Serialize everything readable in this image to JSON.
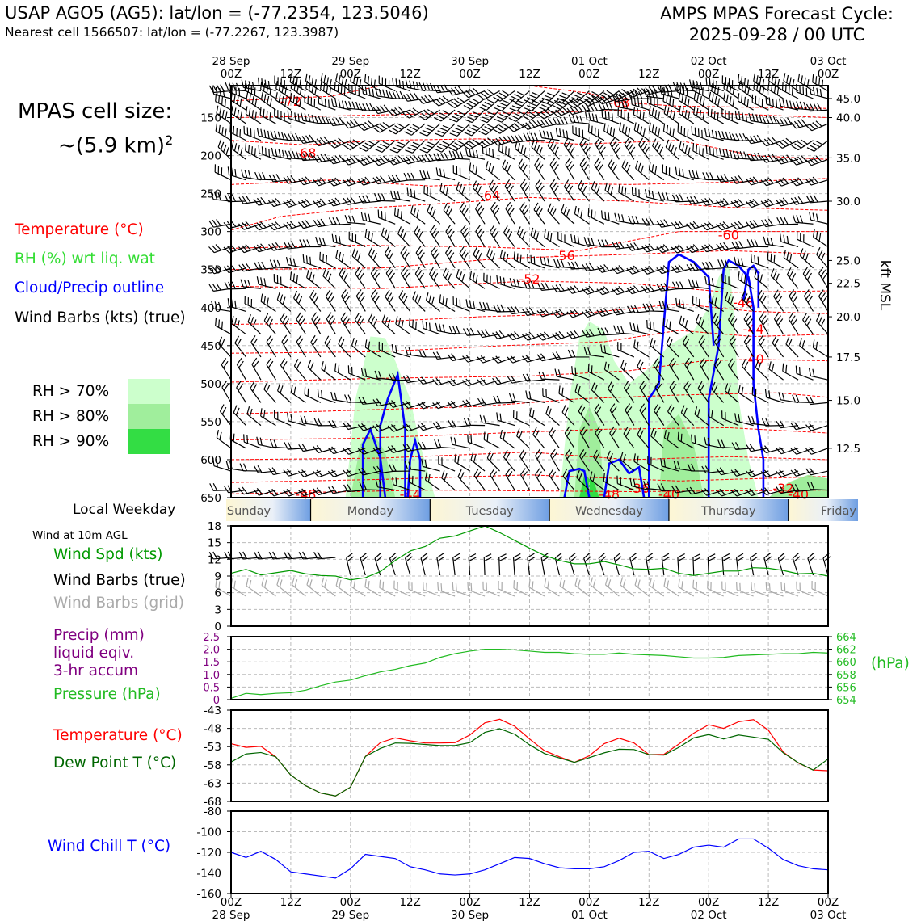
{
  "header": {
    "title_left": "USAP AGO5 (AG5): lat/lon = (-77.2354, 123.5046)",
    "subtitle_left": "Nearest cell 1566507: lat/lon = (-77.2267, 123.3987)",
    "title_right_line1": "AMPS MPAS Forecast Cycle:",
    "title_right_line2": "2025-09-28 / 00 UTC",
    "cell_size_line1": "MPAS cell size:",
    "cell_size_line2": "~(5.9 km)",
    "cell_size_exp": "2"
  },
  "legend": {
    "temperature": "Temperature (°C)",
    "rh": "RH (%) wrt liq. wat",
    "cloud": "Cloud/Precip outline",
    "barbs": "Wind Barbs (kts) (true)",
    "rh70": "RH > 70%",
    "rh80": "RH > 80%",
    "rh90": "RH > 90%",
    "local_weekday": "Local Weekday",
    "wind10m": "Wind at 10m AGL",
    "wind_spd": "Wind Spd (kts)",
    "barbs_true": "Wind Barbs (true)",
    "barbs_grid": "Wind Barbs (grid)",
    "precip1": "Precip (mm)",
    "precip2": "liquid eqiv.",
    "precip3": "3-hr accum",
    "pressure": "Pressure (hPa)",
    "temp2": "Temperature (°C)",
    "dewpoint": "Dew Point T (°C)",
    "windchill": "Wind Chill T (°C)"
  },
  "colors": {
    "temperature": "#ff0000",
    "rh_label": "#33dd33",
    "cloud": "#0000ff",
    "rh70": "#ccffcc",
    "rh80": "#a0ee9c",
    "rh90": "#33dd44",
    "wind_spd": "#009900",
    "barbs_grid": "#aaaaaa",
    "precip": "#800080",
    "pressure": "#22bb22",
    "dewpoint": "#006600",
    "windchill": "#0000ff"
  },
  "chart_data": [
    {
      "type": "line",
      "panel": "cross-section",
      "x_hours": [
        0,
        120
      ],
      "x_ticks": [
        {
          "hour": 0,
          "top": "28 Sep",
          "bot": "00Z"
        },
        {
          "hour": 12,
          "top": "",
          "bot": "12Z"
        },
        {
          "hour": 24,
          "top": "29 Sep",
          "bot": "00Z"
        },
        {
          "hour": 36,
          "top": "",
          "bot": "12Z"
        },
        {
          "hour": 48,
          "top": "30 Sep",
          "bot": "00Z"
        },
        {
          "hour": 60,
          "top": "",
          "bot": "12Z"
        },
        {
          "hour": 72,
          "top": "01 Oct",
          "bot": "00Z"
        },
        {
          "hour": 84,
          "top": "",
          "bot": "12Z"
        },
        {
          "hour": 96,
          "top": "02 Oct",
          "bot": "00Z"
        },
        {
          "hour": 108,
          "top": "",
          "bot": "12Z"
        },
        {
          "hour": 120,
          "top": "03 Oct",
          "bot": "00Z"
        }
      ],
      "pressure_ticks": [
        150,
        200,
        250,
        300,
        350,
        400,
        450,
        500,
        550,
        600,
        650
      ],
      "ylim_hpa": [
        650,
        108
      ],
      "height_ticks": [
        {
          "label": "45.0",
          "p": 125
        },
        {
          "label": "40.0",
          "p": 150
        },
        {
          "label": "35.0",
          "p": 203
        },
        {
          "label": "30.0",
          "p": 260
        },
        {
          "label": "25.0",
          "p": 338
        },
        {
          "label": "22.5",
          "p": 368
        },
        {
          "label": "20.0",
          "p": 412
        },
        {
          "label": "17.5",
          "p": 465
        },
        {
          "label": "15.0",
          "p": 522
        },
        {
          "label": "12.5",
          "p": 585
        }
      ],
      "right_axis_label": "kft MSL",
      "temperature_labels": [
        {
          "text": "-72",
          "hour": 12,
          "p": 128
        },
        {
          "text": "-68",
          "hour": 78,
          "p": 130
        },
        {
          "text": "-68",
          "hour": 15,
          "p": 196
        },
        {
          "text": "-64",
          "hour": 52,
          "p": 252
        },
        {
          "text": "-60",
          "hour": 100,
          "p": 304
        },
        {
          "text": "-56",
          "hour": 67,
          "p": 331
        },
        {
          "text": "-52",
          "hour": 60,
          "p": 362
        },
        {
          "text": "-48",
          "hour": 103,
          "p": 393
        },
        {
          "text": "-44",
          "hour": 105,
          "p": 428
        },
        {
          "text": "-40",
          "hour": 105,
          "p": 467
        },
        {
          "text": "-44",
          "hour": 36,
          "p": 645
        },
        {
          "text": "-48",
          "hour": 76,
          "p": 645
        },
        {
          "text": "-36",
          "hour": 82,
          "p": 637
        },
        {
          "text": "-40",
          "hour": 88,
          "p": 645
        },
        {
          "text": "-32",
          "hour": 111,
          "p": 637
        },
        {
          "text": "-48",
          "hour": 15,
          "p": 645
        },
        {
          "text": "-40",
          "hour": 114,
          "p": 645
        }
      ],
      "weekday_bar": [
        "Sunday",
        "Monday",
        "Tuesday",
        "Wednesday",
        "Thursday",
        "Friday"
      ]
    },
    {
      "type": "line",
      "panel": "wind10m",
      "ylim": [
        0,
        18
      ],
      "yticks": [
        0,
        3,
        6,
        9,
        12,
        15,
        18
      ],
      "x_hours": [
        0,
        3,
        6,
        9,
        12,
        15,
        18,
        21,
        24,
        27,
        30,
        33,
        36,
        39,
        42,
        45,
        48,
        51,
        54,
        57,
        60,
        63,
        66,
        69,
        72,
        75,
        78,
        81,
        84,
        87,
        90,
        93,
        96,
        99,
        102,
        105,
        108,
        111,
        114,
        117,
        120
      ],
      "series": [
        {
          "values": [
            9.5,
            10.2,
            9.2,
            9.6,
            10.0,
            9.4,
            9.1,
            9.0,
            8.3,
            8.7,
            9.8,
            11.8,
            13.5,
            14.3,
            15.8,
            16.2,
            17.1,
            18.0,
            16.8,
            15.4,
            14.0,
            12.7,
            11.8,
            11.2,
            11.2,
            11.6,
            11.0,
            10.3,
            10.2,
            10.4,
            9.5,
            9.1,
            9.5,
            9.9,
            9.9,
            10.5,
            10.4,
            10.0,
            9.4,
            9.5,
            9.0
          ]
        }
      ]
    },
    {
      "type": "line",
      "panel": "precip-pressure",
      "precip_ylim": [
        0,
        2.5
      ],
      "precip_ticks": [
        "0",
        "0.5",
        "1.0",
        "1.5",
        "2.0",
        "2.5"
      ],
      "pressure_ylim": [
        654,
        664
      ],
      "pressure_ticks": [
        654,
        656,
        658,
        660,
        662,
        664
      ],
      "right_axis_label": "(hPa)",
      "x_hours": [
        0,
        3,
        6,
        9,
        12,
        15,
        18,
        21,
        24,
        27,
        30,
        33,
        36,
        39,
        42,
        45,
        48,
        51,
        54,
        57,
        60,
        63,
        66,
        69,
        72,
        75,
        78,
        81,
        84,
        87,
        90,
        93,
        96,
        99,
        102,
        105,
        108,
        111,
        114,
        117,
        120
      ],
      "series": [
        {
          "values": [
            654.2,
            655.0,
            654.8,
            655.0,
            655.1,
            655.5,
            656.2,
            656.8,
            657.1,
            657.8,
            658.4,
            658.8,
            659.4,
            659.8,
            660.7,
            661.3,
            661.7,
            662.0,
            662.0,
            661.9,
            661.7,
            661.5,
            661.5,
            661.3,
            661.2,
            661.2,
            661.4,
            661.2,
            661.1,
            661.0,
            660.8,
            660.6,
            660.6,
            660.7,
            661.0,
            661.1,
            661.2,
            661.3,
            661.3,
            661.5,
            661.4
          ]
        }
      ]
    },
    {
      "type": "line",
      "panel": "temperature-dewpoint",
      "ylim": [
        -68,
        -43
      ],
      "yticks": [
        -68,
        -63,
        -58,
        -53,
        -48,
        -43
      ],
      "x_hours": [
        0,
        3,
        6,
        9,
        12,
        15,
        18,
        21,
        24,
        27,
        30,
        33,
        36,
        39,
        42,
        45,
        48,
        51,
        54,
        57,
        60,
        63,
        66,
        69,
        72,
        75,
        78,
        81,
        84,
        87,
        90,
        93,
        96,
        99,
        102,
        105,
        108,
        111,
        114,
        117,
        120
      ],
      "series": [
        {
          "name": "Temperature",
          "values": [
            -52.2,
            -53.2,
            -52.9,
            -55.8,
            -60.8,
            -63.7,
            -65.7,
            -66.5,
            -64.1,
            -55.7,
            -51.9,
            -50.6,
            -51.4,
            -52.0,
            -52.0,
            -51.9,
            -49.8,
            -46.5,
            -45.5,
            -47.4,
            -50.9,
            -54.1,
            -55.8,
            -57.3,
            -55.5,
            -52.2,
            -50.7,
            -52.0,
            -55.2,
            -55.1,
            -52.3,
            -49.3,
            -47.0,
            -48.0,
            -46.2,
            -45.6,
            -48.5,
            -54.5,
            -57.5,
            -59.4,
            -59.6
          ]
        },
        {
          "name": "Dew Point",
          "values": [
            -57.2,
            -55.0,
            -54.6,
            -55.8,
            -60.8,
            -63.7,
            -65.7,
            -66.5,
            -64.1,
            -55.7,
            -53.5,
            -52.0,
            -52.1,
            -52.4,
            -52.7,
            -52.7,
            -51.9,
            -49.1,
            -48.1,
            -49.6,
            -52.5,
            -54.9,
            -56.1,
            -57.3,
            -56.0,
            -54.7,
            -53.7,
            -53.8,
            -55.2,
            -55.3,
            -53.2,
            -50.6,
            -49.7,
            -50.9,
            -49.8,
            -50.4,
            -51.0,
            -54.7,
            -57.4,
            -59.4,
            -56.4
          ]
        }
      ]
    },
    {
      "type": "line",
      "panel": "windchill",
      "ylim": [
        -160,
        -80
      ],
      "yticks": [
        -160,
        -140,
        -120,
        -100,
        -80
      ],
      "x_hours": [
        0,
        3,
        6,
        9,
        12,
        15,
        18,
        21,
        24,
        27,
        30,
        33,
        36,
        39,
        42,
        45,
        48,
        51,
        54,
        57,
        60,
        63,
        66,
        69,
        72,
        75,
        78,
        81,
        84,
        87,
        90,
        93,
        96,
        99,
        102,
        105,
        108,
        111,
        114,
        117,
        120
      ],
      "series": [
        {
          "values": [
            -120,
            -125,
            -119,
            -127,
            -139,
            -141,
            -143,
            -145,
            -136,
            -122,
            -124,
            -126,
            -134,
            -137,
            -141,
            -142,
            -141,
            -137,
            -131,
            -125,
            -126,
            -131,
            -135,
            -136,
            -136,
            -134,
            -128,
            -120,
            -119,
            -126,
            -122,
            -115,
            -113,
            -115,
            -107,
            -107,
            -116,
            -127,
            -133,
            -136,
            -137
          ]
        }
      ]
    }
  ]
}
